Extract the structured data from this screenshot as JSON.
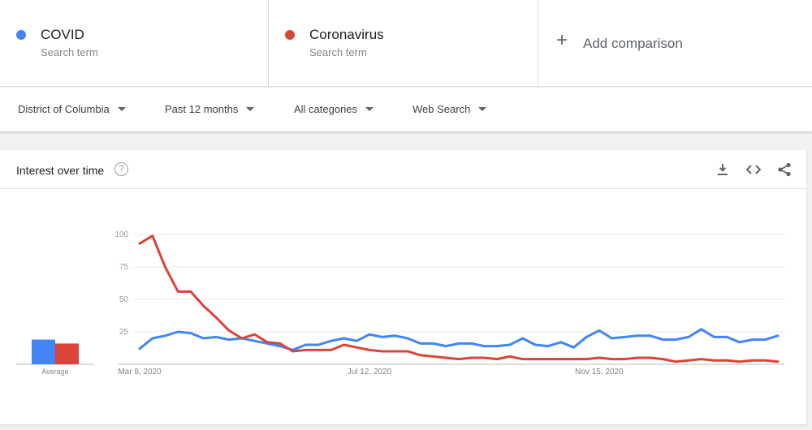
{
  "terms": [
    {
      "name": "COVID",
      "sub": "Search term",
      "color": "#4285f4"
    },
    {
      "name": "Coronavirus",
      "sub": "Search term",
      "color": "#db4437"
    }
  ],
  "add_comparison": "Add comparison",
  "filters": {
    "region": "District of Columbia",
    "time": "Past 12 months",
    "category": "All categories",
    "search_type": "Web Search"
  },
  "card": {
    "title": "Interest over time",
    "help_glyph": "?",
    "average_label": "Average",
    "icons": [
      "download-icon",
      "embed-code-icon",
      "share-icon"
    ]
  },
  "chart_data": {
    "type": "line",
    "x_tick_labels": [
      "Mar 8, 2020",
      "Jul 12, 2020",
      "Nov 15, 2020"
    ],
    "x_tick_indices": [
      0,
      18,
      36
    ],
    "y_ticks": [
      25,
      50,
      75,
      100
    ],
    "ylim": [
      0,
      100
    ],
    "grid": true,
    "series": [
      {
        "name": "COVID",
        "color": "#4285f4",
        "average": 19,
        "values": [
          12,
          20,
          22,
          25,
          24,
          20,
          21,
          19,
          20,
          18,
          16,
          14,
          11,
          15,
          15,
          18,
          20,
          18,
          23,
          21,
          22,
          20,
          16,
          16,
          14,
          16,
          16,
          14,
          14,
          15,
          20,
          15,
          14,
          17,
          13,
          21,
          26,
          20,
          21,
          22,
          22,
          19,
          19,
          21,
          27,
          21,
          21,
          17,
          19,
          19,
          22
        ]
      },
      {
        "name": "Coronavirus",
        "color": "#db4437",
        "average": 16,
        "values": [
          93,
          99,
          75,
          56,
          56,
          45,
          36,
          26,
          20,
          23,
          17,
          16,
          10,
          11,
          11,
          11,
          15,
          13,
          11,
          10,
          10,
          10,
          7,
          6,
          5,
          4,
          5,
          5,
          4,
          6,
          4,
          4,
          4,
          4,
          4,
          4,
          5,
          4,
          4,
          5,
          5,
          4,
          2,
          3,
          4,
          3,
          3,
          2,
          3,
          3,
          2
        ]
      }
    ]
  }
}
